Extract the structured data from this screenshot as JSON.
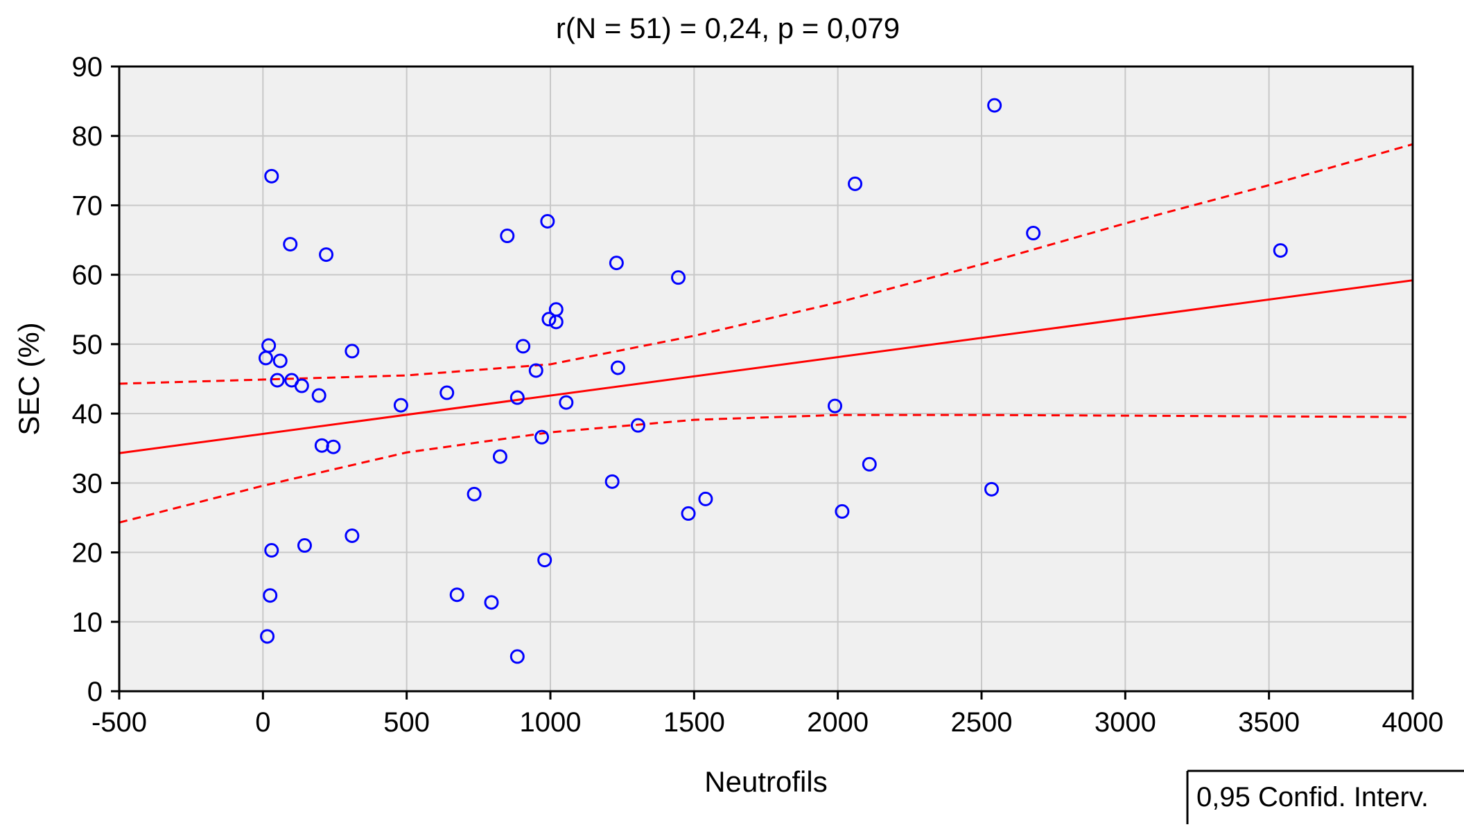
{
  "chart_data": {
    "type": "scatter",
    "title": "r(N = 51) = 0,24, p = 0,079",
    "xlabel": "Neutrofils",
    "ylabel": "SEC (%)",
    "xlim": [
      -500,
      4000
    ],
    "ylim": [
      0,
      90
    ],
    "xticks": [
      -500,
      0,
      500,
      1000,
      1500,
      2000,
      2500,
      3000,
      3500,
      4000
    ],
    "yticks": [
      0,
      10,
      20,
      30,
      40,
      50,
      60,
      70,
      80,
      90
    ],
    "grid": true,
    "legend": {
      "text": "0,95 Confid. Interv.",
      "placement": "bottom-right"
    },
    "points": [
      {
        "x": 30,
        "y": 74.2
      },
      {
        "x": 95,
        "y": 64.4
      },
      {
        "x": 220,
        "y": 62.9
      },
      {
        "x": 20,
        "y": 49.8
      },
      {
        "x": 10,
        "y": 48.0
      },
      {
        "x": 60,
        "y": 47.6
      },
      {
        "x": 310,
        "y": 49.0
      },
      {
        "x": 50,
        "y": 44.8
      },
      {
        "x": 100,
        "y": 44.8
      },
      {
        "x": 135,
        "y": 44.0
      },
      {
        "x": 195,
        "y": 42.6
      },
      {
        "x": 480,
        "y": 41.2
      },
      {
        "x": 640,
        "y": 43.0
      },
      {
        "x": 205,
        "y": 35.4
      },
      {
        "x": 245,
        "y": 35.2
      },
      {
        "x": 30,
        "y": 20.3
      },
      {
        "x": 145,
        "y": 21.0
      },
      {
        "x": 310,
        "y": 22.4
      },
      {
        "x": 25,
        "y": 13.8
      },
      {
        "x": 15,
        "y": 7.9
      },
      {
        "x": 850,
        "y": 65.6
      },
      {
        "x": 990,
        "y": 67.7
      },
      {
        "x": 1230,
        "y": 61.7
      },
      {
        "x": 1445,
        "y": 59.6
      },
      {
        "x": 1020,
        "y": 55.0
      },
      {
        "x": 995,
        "y": 53.6
      },
      {
        "x": 1020,
        "y": 53.2
      },
      {
        "x": 905,
        "y": 49.7
      },
      {
        "x": 950,
        "y": 46.2
      },
      {
        "x": 1235,
        "y": 46.6
      },
      {
        "x": 885,
        "y": 42.3
      },
      {
        "x": 1055,
        "y": 41.6
      },
      {
        "x": 1305,
        "y": 38.3
      },
      {
        "x": 970,
        "y": 36.6
      },
      {
        "x": 825,
        "y": 33.8
      },
      {
        "x": 735,
        "y": 28.4
      },
      {
        "x": 1215,
        "y": 30.2
      },
      {
        "x": 1540,
        "y": 27.7
      },
      {
        "x": 1480,
        "y": 25.6
      },
      {
        "x": 980,
        "y": 18.9
      },
      {
        "x": 675,
        "y": 13.9
      },
      {
        "x": 795,
        "y": 12.8
      },
      {
        "x": 885,
        "y": 5.0
      },
      {
        "x": 2545,
        "y": 84.4
      },
      {
        "x": 2060,
        "y": 73.1
      },
      {
        "x": 2680,
        "y": 66.0
      },
      {
        "x": 3540,
        "y": 63.5
      },
      {
        "x": 1990,
        "y": 41.1
      },
      {
        "x": 2110,
        "y": 32.7
      },
      {
        "x": 2015,
        "y": 25.9
      },
      {
        "x": 2535,
        "y": 29.1
      }
    ],
    "regression_line": {
      "x": [
        -500,
        4000
      ],
      "y": [
        34.3,
        59.2
      ]
    },
    "confidence_upper": {
      "x": [
        -500,
        0,
        500,
        1000,
        1500,
        2000,
        2500,
        3000,
        3500,
        4000
      ],
      "y": [
        44.3,
        44.9,
        45.5,
        47.1,
        51.2,
        56.0,
        61.5,
        67.4,
        72.9,
        78.8
      ]
    },
    "confidence_lower": {
      "x": [
        -500,
        0,
        500,
        1000,
        1500,
        2000,
        2500,
        3000,
        3500,
        4000
      ],
      "y": [
        24.3,
        29.6,
        34.4,
        37.3,
        39.1,
        39.8,
        39.8,
        39.7,
        39.6,
        39.5
      ]
    },
    "colors": {
      "points": "#0000ff",
      "fit_line": "#ff0000",
      "plot_background": "#f0f0f0",
      "grid": "#c8c8c8",
      "axis": "#000000"
    }
  }
}
